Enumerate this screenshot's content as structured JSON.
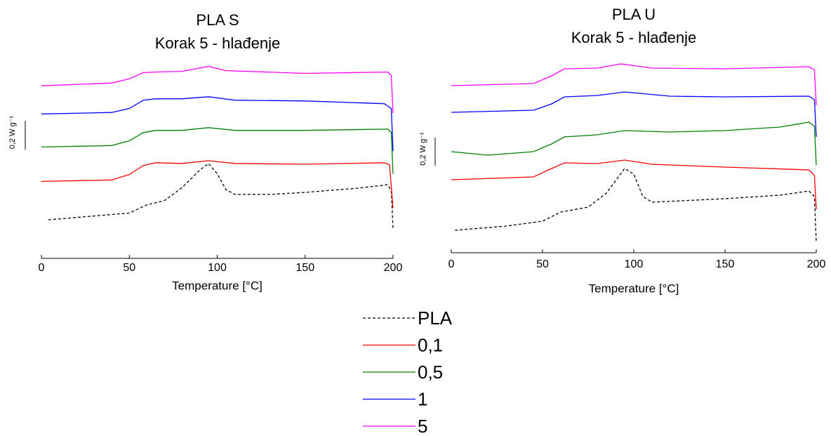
{
  "chart_data": [
    {
      "type": "line",
      "title": "PLA S",
      "subtitle": "Korak 5 - hlađenje",
      "x_label": "Temperature [°C]",
      "xlim": [
        0,
        200
      ],
      "xticks": [
        0,
        50,
        100,
        150,
        200
      ],
      "ylim": [
        0,
        1.4
      ],
      "scale_bar": {
        "value": 0.2,
        "label": "0,2 W g⁻¹"
      },
      "legend": "bottom",
      "series": [
        {
          "name": "PLA",
          "color": "#000000",
          "style": "dashed",
          "x": [
            4,
            50,
            60,
            70,
            80,
            90,
            95,
            100,
            105,
            110,
            130,
            150,
            180,
            197,
            199,
            200
          ],
          "values": [
            0.267,
            0.314,
            0.371,
            0.4,
            0.49,
            0.61,
            0.657,
            0.586,
            0.476,
            0.443,
            0.443,
            0.457,
            0.486,
            0.51,
            0.467,
            0.205
          ]
        },
        {
          "name": "0,1",
          "color": "#ff0000",
          "style": "solid",
          "x": [
            0,
            40,
            50,
            58,
            65,
            80,
            95,
            110,
            150,
            195,
            198,
            200
          ],
          "values": [
            0.533,
            0.543,
            0.581,
            0.643,
            0.662,
            0.657,
            0.676,
            0.657,
            0.652,
            0.662,
            0.648,
            0.348
          ]
        },
        {
          "name": "0,5",
          "color": "#008000",
          "style": "solid",
          "x": [
            0,
            40,
            50,
            58,
            65,
            80,
            95,
            110,
            150,
            197,
            199,
            200
          ],
          "values": [
            0.771,
            0.781,
            0.814,
            0.871,
            0.886,
            0.886,
            0.905,
            0.886,
            0.886,
            0.895,
            0.871,
            0.586
          ]
        },
        {
          "name": "1",
          "color": "#0000ff",
          "style": "solid",
          "x": [
            0,
            40,
            50,
            58,
            65,
            80,
            95,
            110,
            150,
            195,
            199,
            200
          ],
          "values": [
            1.0,
            1.01,
            1.038,
            1.095,
            1.105,
            1.105,
            1.119,
            1.095,
            1.09,
            1.071,
            1.038,
            0.743
          ]
        },
        {
          "name": "5",
          "color": "#ff00ff",
          "style": "solid",
          "x": [
            0,
            40,
            50,
            58,
            65,
            80,
            95,
            105,
            150,
            197,
            199,
            200
          ],
          "values": [
            1.195,
            1.214,
            1.243,
            1.286,
            1.29,
            1.295,
            1.329,
            1.3,
            1.281,
            1.29,
            1.267,
            1.005
          ]
        }
      ]
    },
    {
      "type": "line",
      "title": "PLA U",
      "subtitle": "Korak 5 - hlađenje",
      "x_label": "Temperature [°C]",
      "xlim": [
        0,
        200
      ],
      "xticks": [
        0,
        50,
        100,
        150,
        200
      ],
      "ylim": [
        0,
        1.4
      ],
      "scale_bar": {
        "value": 0.2,
        "label": "0,2 W g⁻¹"
      },
      "series": [
        {
          "name": "PLA",
          "color": "#000000",
          "style": "dashed",
          "x": [
            2,
            30,
            50,
            60,
            75,
            85,
            95,
            100,
            105,
            110,
            150,
            180,
            196,
            199,
            200
          ],
          "values": [
            0.16,
            0.19,
            0.225,
            0.29,
            0.325,
            0.425,
            0.6,
            0.56,
            0.4,
            0.36,
            0.385,
            0.41,
            0.44,
            0.4,
            0.075
          ]
        },
        {
          "name": "0,1",
          "color": "#ff0000",
          "style": "solid",
          "x": [
            0,
            45,
            55,
            62,
            80,
            95,
            110,
            150,
            196,
            199,
            200
          ],
          "values": [
            0.52,
            0.54,
            0.6,
            0.64,
            0.635,
            0.66,
            0.63,
            0.61,
            0.59,
            0.55,
            0.31
          ]
        },
        {
          "name": "0,5",
          "color": "#008000",
          "style": "solid",
          "x": [
            0,
            20,
            45,
            55,
            62,
            80,
            95,
            120,
            150,
            180,
            196,
            199,
            200
          ],
          "values": [
            0.72,
            0.695,
            0.72,
            0.775,
            0.825,
            0.84,
            0.87,
            0.86,
            0.87,
            0.895,
            0.93,
            0.9,
            0.625
          ]
        },
        {
          "name": "1",
          "color": "#0000ff",
          "style": "solid",
          "x": [
            0,
            45,
            55,
            62,
            80,
            95,
            120,
            150,
            196,
            199,
            200
          ],
          "values": [
            1.0,
            1.015,
            1.06,
            1.11,
            1.12,
            1.145,
            1.115,
            1.11,
            1.115,
            1.09,
            0.825
          ]
        },
        {
          "name": "5",
          "color": "#ff00ff",
          "style": "solid",
          "x": [
            0,
            45,
            55,
            62,
            80,
            93,
            110,
            150,
            196,
            199,
            200
          ],
          "values": [
            1.19,
            1.205,
            1.26,
            1.31,
            1.315,
            1.345,
            1.315,
            1.31,
            1.325,
            1.3,
            1.05
          ]
        }
      ]
    }
  ]
}
